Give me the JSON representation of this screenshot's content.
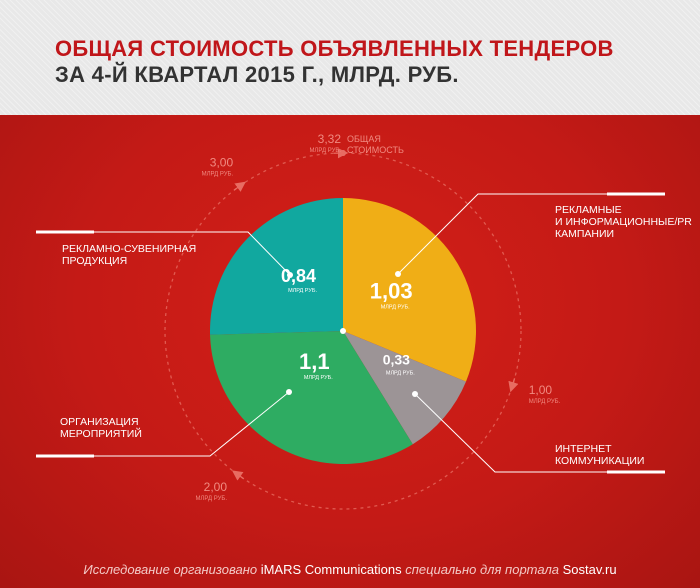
{
  "header": {
    "title_line1": "ОБЩАЯ СТОИМОСТЬ ОБЪЯВЛЕННЫХ ТЕНДЕРОВ",
    "title_line2": "ЗА 4-Й КВАРТАЛ 2015 Г., МЛРД. РУБ."
  },
  "colors": {
    "background": "#c81a1a",
    "advertising_pr": "#f0ae16",
    "internet": "#9c9496",
    "events": "#2eac62",
    "souvenir": "#11a89f"
  },
  "chart_data": {
    "type": "pie",
    "total": 3.32,
    "unit": "МЛРД РУБ.",
    "slices": [
      {
        "label": "РЕКЛАМНЫЕ И ИНФОРМАЦИОННЫЕ/PR КАМПАНИИ",
        "value": 1.03,
        "value_text": "1,03",
        "color": "#f0ae16"
      },
      {
        "label": "ИНТЕРНЕТ КОММУНИКАЦИИ",
        "value": 0.33,
        "value_text": "0,33",
        "color": "#9c9496"
      },
      {
        "label": "ОРГАНИЗАЦИЯ МЕРОПРИЯТИЙ",
        "value": 1.1,
        "value_text": "1,1",
        "color": "#2eac62"
      },
      {
        "label": "РЕКЛАМНО-СУВЕНИРНАЯ ПРОДУКЦИЯ",
        "value": 0.84,
        "value_text": "0,84",
        "color": "#11a89f"
      }
    ],
    "value_unit_label": "МЛРД РУБ.",
    "outer_scale": [
      {
        "value": 1.0,
        "text": "1,00",
        "sub": "МЛРД РУБ."
      },
      {
        "value": 2.0,
        "text": "2,00",
        "sub": "МЛРД РУБ."
      },
      {
        "value": 3.0,
        "text": "3,00",
        "sub": "МЛРД РУБ."
      },
      {
        "value": 3.32,
        "text": "3,32",
        "sub": "МЛРД РУБ.",
        "caption": "ОБЩАЯ СТОИМОСТЬ"
      }
    ]
  },
  "labels": {
    "ad_pr": [
      "РЕКЛАМНЫЕ",
      "И ИНФОРМАЦИОННЫЕ/PR",
      "КАМПАНИИ"
    ],
    "internet": [
      "ИНТЕРНЕТ",
      "КОММУНИКАЦИИ"
    ],
    "events": [
      "ОРГАНИЗАЦИЯ",
      "МЕРОПРИЯТИЙ"
    ],
    "souvenir": [
      "РЕКЛАМНО-СУВЕНИРНАЯ",
      "ПРОДУКЦИЯ"
    ],
    "total_caption": [
      "ОБЩАЯ",
      "СТОИМОСТЬ"
    ]
  },
  "footer": {
    "prefix": "Исследование организовано ",
    "org": "iMARS Communications",
    "middle": " специально для портала ",
    "portal": "Sostav.ru"
  }
}
